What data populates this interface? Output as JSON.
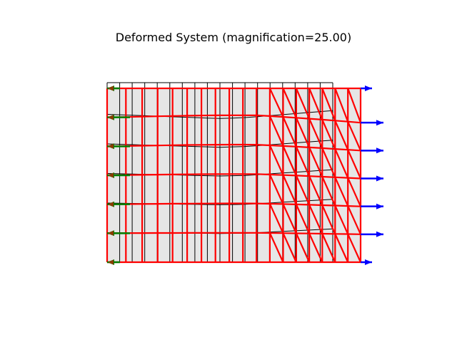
{
  "figure": {
    "title": "Deformed System (magnification=25.00)"
  },
  "chart_data": {
    "type": "mesh",
    "title": "Deformed System (magnification=25.00)",
    "magnification": 25.0,
    "colors": {
      "background": "#ffffff",
      "element_fill": "#e6e6e6",
      "original_mesh": "#000000",
      "deformed_mesh": "#ff0000",
      "applied_load_arrows": "#0000ff",
      "reaction_arrows": "#007f00",
      "reaction_tip": "#8b3a00"
    },
    "load_arrows": {
      "side": "right",
      "direction": "outward",
      "count": 7
    },
    "reaction_arrows": {
      "side": "left",
      "direction": "outward",
      "count": 7
    }
  }
}
